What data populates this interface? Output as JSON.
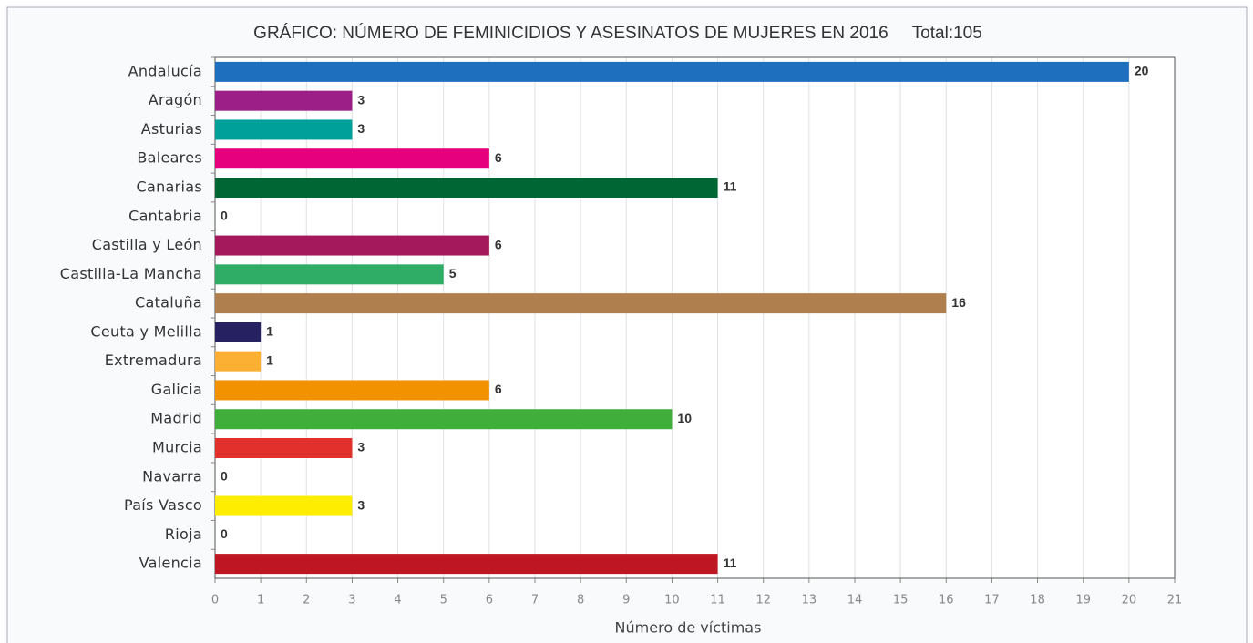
{
  "chart_data": {
    "type": "bar",
    "orientation": "horizontal",
    "title": "GRÁFICO: NÚMERO DE FEMINICIDIOS Y ASESINATOS DE MUJERES EN 2016     Total:105",
    "x_label": "Número de víctimas",
    "categories": [
      "Andalucía",
      "Aragón",
      "Asturias",
      "Baleares",
      "Canarias",
      "Cantabria",
      "Castilla y León",
      "Castilla-La Mancha",
      "Cataluña",
      "Ceuta y Melilla",
      "Extremadura",
      "Galicia",
      "Madrid",
      "Murcia",
      "Navarra",
      "País Vasco",
      "Rioja",
      "Valencia"
    ],
    "values": [
      20,
      3,
      3,
      6,
      11,
      0,
      6,
      5,
      16,
      1,
      1,
      6,
      10,
      3,
      0,
      3,
      0,
      11
    ],
    "colors": [
      "#1f6fbf",
      "#9b1f87",
      "#00a09a",
      "#e6007e",
      "#006633",
      "#8c8c8c",
      "#a3195b",
      "#2fad66",
      "#b07f4e",
      "#262262",
      "#fbb034",
      "#f39200",
      "#3fae3a",
      "#e2312d",
      "#8c8c8c",
      "#ffed00",
      "#8c8c8c",
      "#be1622"
    ],
    "xlim": [
      0,
      21
    ],
    "xticks": [
      0,
      1,
      2,
      3,
      4,
      5,
      6,
      7,
      8,
      9,
      10,
      11,
      12,
      13,
      14,
      15,
      16,
      17,
      18,
      19,
      20,
      21
    ],
    "grid": true
  }
}
